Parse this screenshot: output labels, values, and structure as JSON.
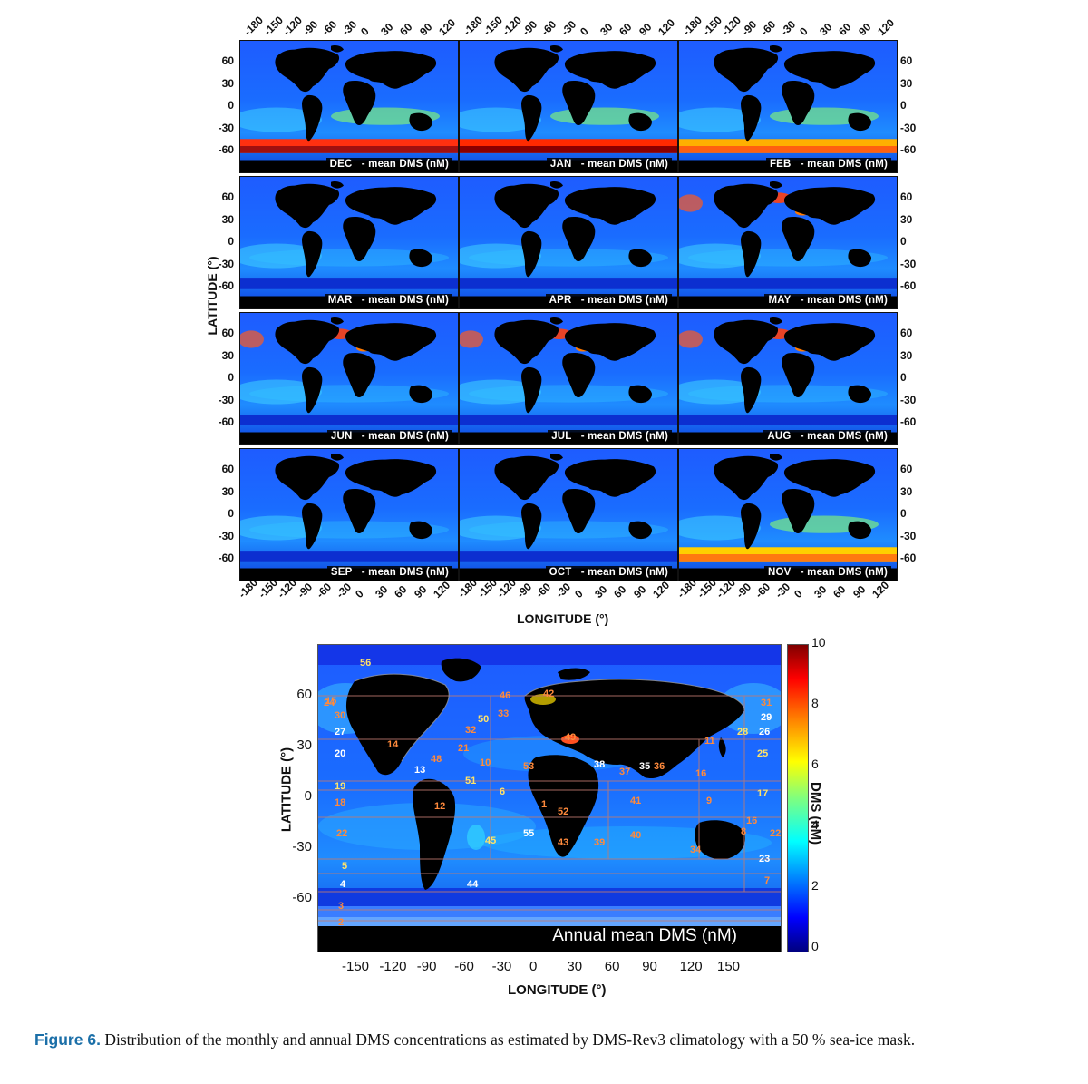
{
  "monthly_panels": {
    "unit_label": "- mean DMS (nM)",
    "months": [
      "DEC",
      "JAN",
      "FEB",
      "MAR",
      "APR",
      "MAY",
      "JUN",
      "JUL",
      "AUG",
      "SEP",
      "OCT",
      "NOV"
    ],
    "lon_ticks": [
      "-180",
      "-150",
      "-120",
      "-90",
      "-60",
      "-30",
      "0",
      "30",
      "60",
      "90",
      "120"
    ],
    "lat_ticks": [
      "60",
      "30",
      "0",
      "-30",
      "-60"
    ],
    "xlabel": "LONGITUDE (°)",
    "ylabel": "LATITUDE (°)"
  },
  "annual_map": {
    "title": "Annual mean DMS (nM)",
    "xlabel": "LONGITUDE (°)",
    "ylabel": "LATITUDE (°)",
    "lon_ticks": [
      "-150",
      "-120",
      "-90",
      "-60",
      "-30",
      "0",
      "30",
      "60",
      "90",
      "120",
      "150"
    ],
    "lat_ticks": [
      "60",
      "30",
      "0",
      "-30",
      "-60"
    ],
    "colorbar": {
      "label": "DMS (nM)",
      "ticks": [
        "10",
        "8",
        "6",
        "4",
        "2",
        "0"
      ],
      "range": [
        0,
        10
      ],
      "colormap": [
        "#00007f",
        "#0000ff",
        "#007fff",
        "#00ffff",
        "#7fff7f",
        "#ffff00",
        "#ff7f00",
        "#ff0000",
        "#7f0000"
      ]
    },
    "regions": [
      {
        "id": "56",
        "color": "#ffe36a"
      },
      {
        "id": "30",
        "color": "#ff8a3c"
      },
      {
        "id": "27",
        "color": "#ffffff"
      },
      {
        "id": "20",
        "color": "#ffffff"
      },
      {
        "id": "19",
        "color": "#ffe36a"
      },
      {
        "id": "18",
        "color": "#ff8a3c"
      },
      {
        "id": "22",
        "color": "#ff8a3c"
      },
      {
        "id": "5",
        "color": "#ffe36a"
      },
      {
        "id": "4",
        "color": "#ffffff"
      },
      {
        "id": "3",
        "color": "#ff8a3c"
      },
      {
        "id": "2",
        "color": "#ff8a3c"
      },
      {
        "id": "14",
        "color": "#ff8a3c"
      },
      {
        "id": "32",
        "color": "#ff8a3c"
      },
      {
        "id": "50",
        "color": "#ffe36a"
      },
      {
        "id": "33",
        "color": "#ff8a3c"
      },
      {
        "id": "46",
        "color": "#ff8a3c"
      },
      {
        "id": "42",
        "color": "#ff8a3c"
      },
      {
        "id": "21",
        "color": "#ff8a3c"
      },
      {
        "id": "48",
        "color": "#ff8a3c"
      },
      {
        "id": "10",
        "color": "#ff8a3c"
      },
      {
        "id": "53",
        "color": "#ff8a3c"
      },
      {
        "id": "13",
        "color": "#ffffff"
      },
      {
        "id": "51",
        "color": "#ffe36a"
      },
      {
        "id": "6",
        "color": "#ffe36a"
      },
      {
        "id": "1",
        "color": "#ff8a3c"
      },
      {
        "id": "12",
        "color": "#ff8a3c"
      },
      {
        "id": "52",
        "color": "#ff8a3c"
      },
      {
        "id": "55",
        "color": "#ffffff"
      },
      {
        "id": "45",
        "color": "#ffe36a"
      },
      {
        "id": "43",
        "color": "#ff8a3c"
      },
      {
        "id": "39",
        "color": "#ff8a3c"
      },
      {
        "id": "44",
        "color": "#ffffff"
      },
      {
        "id": "38",
        "color": "#ffffff"
      },
      {
        "id": "37",
        "color": "#ff8a3c"
      },
      {
        "id": "35",
        "color": "#ffffff"
      },
      {
        "id": "36",
        "color": "#ff8a3c"
      },
      {
        "id": "41",
        "color": "#ff8a3c"
      },
      {
        "id": "40",
        "color": "#ff8a3c"
      },
      {
        "id": "16",
        "color": "#ff8a3c"
      },
      {
        "id": "9",
        "color": "#ff8a3c"
      },
      {
        "id": "11",
        "color": "#ff8a3c"
      },
      {
        "id": "28",
        "color": "#ffe36a"
      },
      {
        "id": "31",
        "color": "#ff8a3c"
      },
      {
        "id": "29",
        "color": "#ffffff"
      },
      {
        "id": "26",
        "color": "#ffffff"
      },
      {
        "id": "25",
        "color": "#ffe36a"
      },
      {
        "id": "17",
        "color": "#ffe36a"
      },
      {
        "id": "8",
        "color": "#ff8a3c"
      },
      {
        "id": "34",
        "color": "#ff8a3c"
      },
      {
        "id": "23",
        "color": "#ffffff"
      },
      {
        "id": "7",
        "color": "#ff8a3c"
      },
      {
        "id": "49",
        "color": "#ff8a3c"
      },
      {
        "id": "15",
        "color": "#ff8a3c"
      },
      {
        "id": "24",
        "color": "#ff8a3c"
      },
      {
        "id": "16b",
        "label": "16",
        "color": "#ff8a3c"
      },
      {
        "id": "22b",
        "label": "22",
        "color": "#ff8a3c"
      }
    ]
  },
  "caption": {
    "lead": "Figure 6.",
    "text": " Distribution of the monthly and annual DMS concentrations as estimated by DMS-Rev3 climatology with a 50 % sea-ice mask."
  }
}
